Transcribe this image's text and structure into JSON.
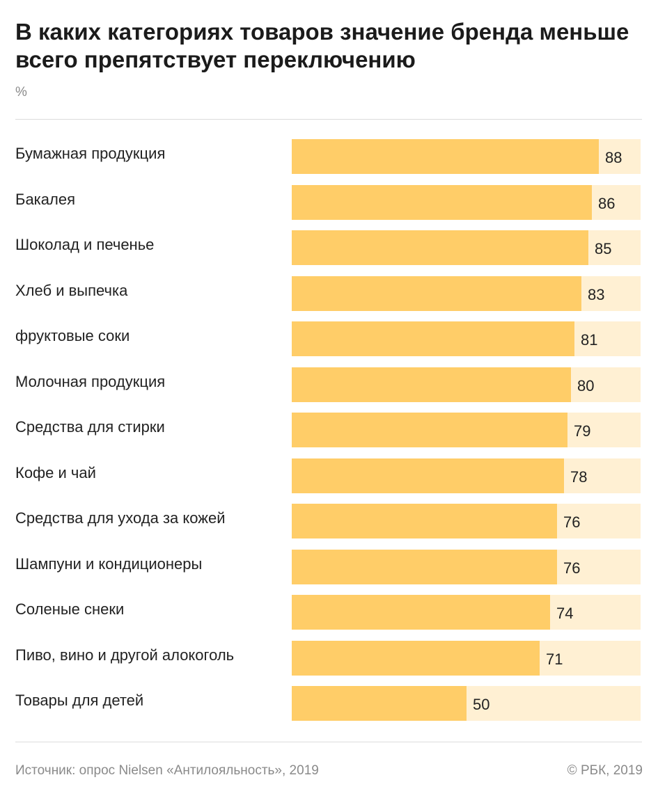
{
  "header": {
    "title": "В каких категориях товаров значение бренда меньше всего препятствует переключению",
    "unit": "%"
  },
  "colors": {
    "bar_fill": "#ffcd68",
    "bar_track": "#fff0d3"
  },
  "chart_data": {
    "type": "bar",
    "orientation": "horizontal",
    "title": "В каких категориях товаров значение бренда меньше всего препятствует переключению",
    "ylabel": "%",
    "xlim": [
      0,
      100
    ],
    "grid": false,
    "categories": [
      "Бумажная продукция",
      "Бакалея",
      "Шоколад и печенье",
      "Хлеб и выпечка",
      "фруктовые соки",
      "Молочная продукция",
      "Средства для стирки",
      "Кофе и чай",
      "Средства для ухода за кожей",
      "Шампуни и кондиционеры",
      "Соленые снеки",
      "Пиво, вино и другой алокоголь",
      "Товары для детей"
    ],
    "values": [
      88,
      86,
      85,
      83,
      81,
      80,
      79,
      78,
      76,
      76,
      74,
      71,
      50
    ]
  },
  "footer": {
    "source": "Источник: опрос Nielsen «Антилояльность», 2019",
    "copyright": "© РБК, 2019"
  }
}
